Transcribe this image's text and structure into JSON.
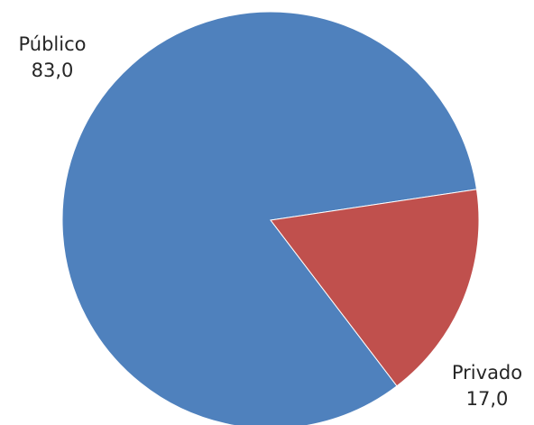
{
  "chart_data": {
    "type": "pie",
    "title": "",
    "slices": [
      {
        "name": "Público",
        "value": 83.0,
        "value_label": "83,0",
        "color": "#4F81BD"
      },
      {
        "name": "Privado",
        "value": 17.0,
        "value_label": "17,0",
        "color": "#C0504D"
      }
    ],
    "start_angle_deg": 8.5,
    "direction": "counterclockwise",
    "legend": "none",
    "data_labels": "outside"
  }
}
